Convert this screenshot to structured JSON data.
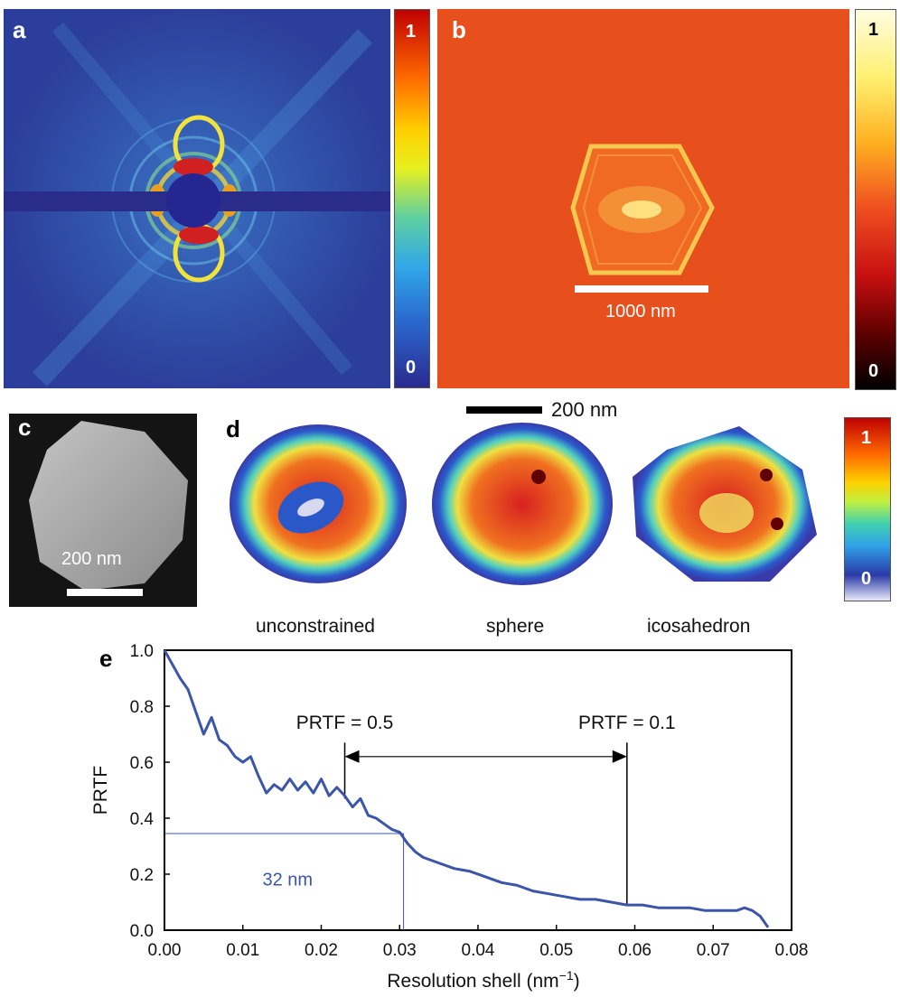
{
  "panels": {
    "a": {
      "letter": "a",
      "colorbar": {
        "max_label": "1",
        "min_label": "0"
      }
    },
    "b": {
      "letter": "b",
      "scalebar_label": "1000 nm",
      "colorbar": {
        "max_label": "1",
        "min_label": "0"
      }
    },
    "c": {
      "letter": "c",
      "scalebar_label": "200 nm"
    },
    "d": {
      "letter": "d",
      "scalebar_label": "200 nm",
      "reconstructions": [
        {
          "label": "unconstrained"
        },
        {
          "label": "sphere"
        },
        {
          "label": "icosahedron"
        }
      ],
      "colorbar": {
        "max_label": "1",
        "min_label": "0"
      }
    },
    "e": {
      "letter": "e"
    }
  },
  "colors": {
    "jet_low": "#2a2a8f",
    "jet_high": "#c00000",
    "curve": "#3b55a8",
    "annotation_blue": "#3b55a8"
  },
  "chart_data": {
    "type": "line",
    "title": "",
    "xlabel": "Resolution shell (nm",
    "xlabel_sup": "−1",
    "xlabel_end": ")",
    "ylabel": "PRTF",
    "xlim": [
      0.0,
      0.08
    ],
    "ylim": [
      0.0,
      1.0
    ],
    "xticks": [
      "0.00",
      "0.01",
      "0.02",
      "0.03",
      "0.04",
      "0.05",
      "0.06",
      "0.07",
      "0.08"
    ],
    "yticks": [
      "0.0",
      "0.2",
      "0.4",
      "0.6",
      "0.8",
      "1.0"
    ],
    "grid": false,
    "series": [
      {
        "x": [
          0.0,
          0.001,
          0.002,
          0.003,
          0.004,
          0.005,
          0.006,
          0.007,
          0.008,
          0.009,
          0.01,
          0.011,
          0.012,
          0.013,
          0.014,
          0.015,
          0.016,
          0.017,
          0.018,
          0.019,
          0.02,
          0.021,
          0.022,
          0.023,
          0.024,
          0.025,
          0.026,
          0.027,
          0.028,
          0.029,
          0.03,
          0.031,
          0.032,
          0.033,
          0.035,
          0.037,
          0.039,
          0.041,
          0.043,
          0.045,
          0.047,
          0.049,
          0.051,
          0.053,
          0.055,
          0.057,
          0.059,
          0.061,
          0.063,
          0.065,
          0.067,
          0.069,
          0.071,
          0.073,
          0.074,
          0.075,
          0.076,
          0.077
        ],
        "y": [
          1.0,
          0.95,
          0.9,
          0.86,
          0.78,
          0.7,
          0.76,
          0.68,
          0.66,
          0.62,
          0.6,
          0.62,
          0.55,
          0.49,
          0.52,
          0.5,
          0.54,
          0.5,
          0.53,
          0.49,
          0.54,
          0.48,
          0.51,
          0.48,
          0.44,
          0.47,
          0.41,
          0.4,
          0.38,
          0.36,
          0.35,
          0.31,
          0.28,
          0.26,
          0.24,
          0.22,
          0.21,
          0.19,
          0.17,
          0.16,
          0.14,
          0.13,
          0.12,
          0.11,
          0.11,
          0.1,
          0.09,
          0.09,
          0.08,
          0.08,
          0.08,
          0.07,
          0.07,
          0.07,
          0.08,
          0.07,
          0.05,
          0.01
        ]
      }
    ],
    "annotations": {
      "prtf05": {
        "label": "PRTF = 0.5",
        "x": 0.023
      },
      "prtf01": {
        "label": "PRTF = 0.1",
        "x": 0.059
      },
      "resolution": {
        "label": "32 nm",
        "x": 0.0305,
        "y": 0.345
      }
    }
  }
}
